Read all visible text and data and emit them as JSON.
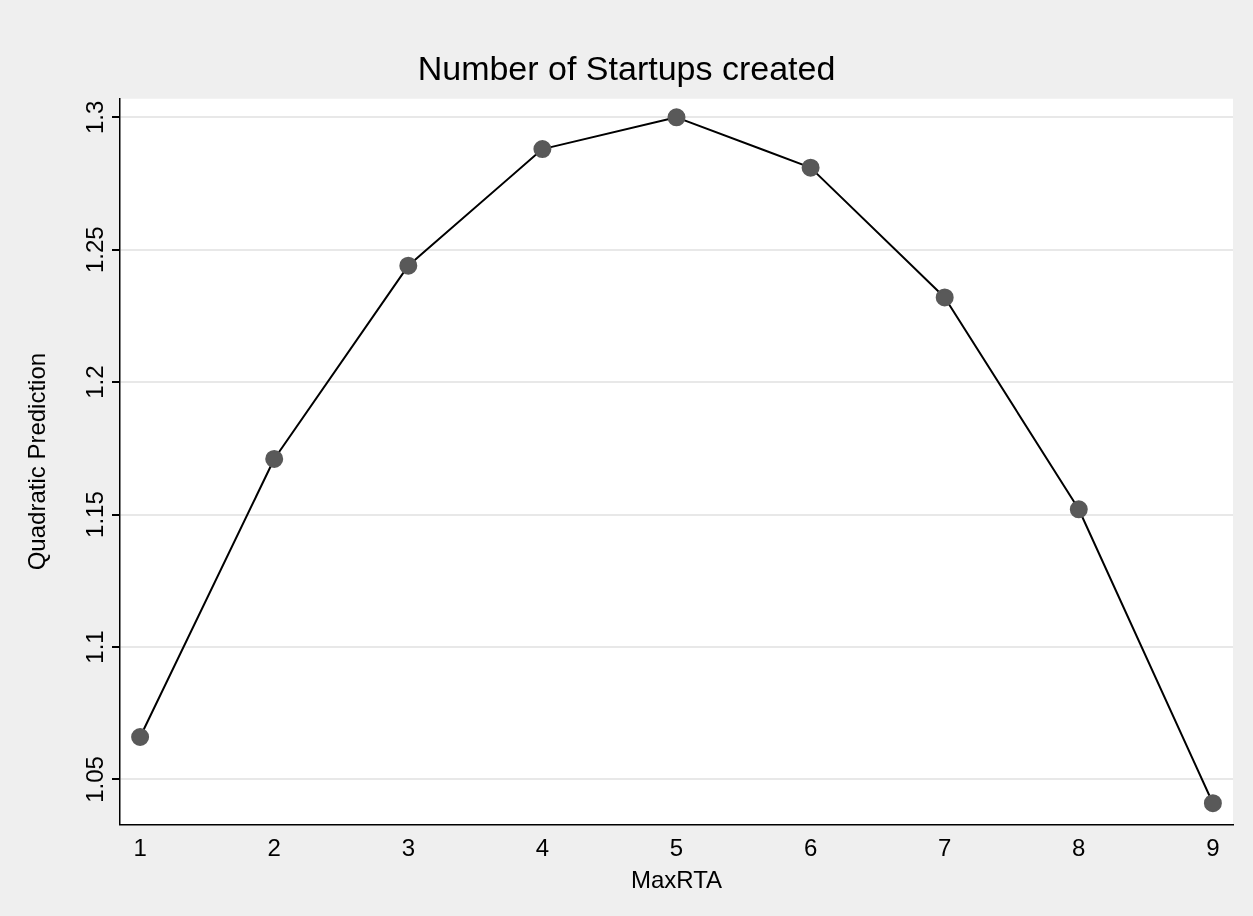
{
  "chart_data": {
    "type": "line",
    "title": "Number of Startups created",
    "xlabel": "MaxRTA",
    "ylabel": "Quadratic Prediction",
    "x": [
      1,
      2,
      3,
      4,
      5,
      6,
      7,
      8,
      9
    ],
    "series": [
      {
        "color": "#000000",
        "values": [
          1.066,
          1.171,
          1.244,
          1.288,
          1.3,
          1.281,
          1.232,
          1.152,
          1.041
        ]
      }
    ],
    "xlim": [
      0.85,
      9.15
    ],
    "xticks": [
      1,
      2,
      3,
      4,
      5,
      6,
      7,
      8,
      9
    ],
    "ylim": [
      1.033,
      1.307
    ],
    "yticks": [
      1.05,
      1.1,
      1.15,
      1.2,
      1.25,
      1.3
    ],
    "grid": "y",
    "legend": false,
    "marker": "circle",
    "line_style": "solid"
  }
}
